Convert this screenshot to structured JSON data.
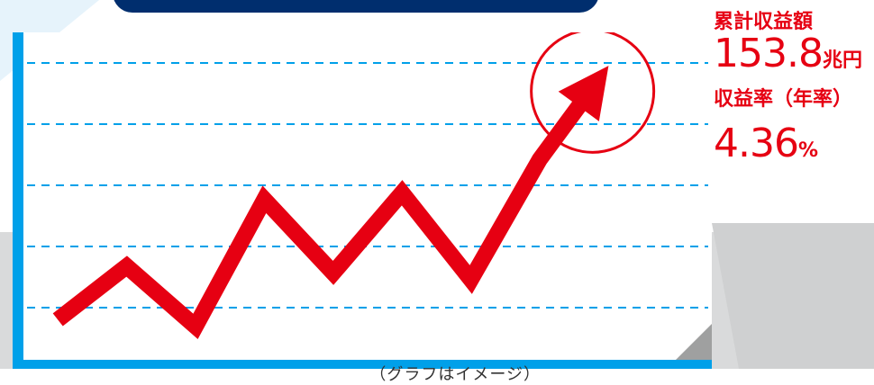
{
  "colors": {
    "accent": "#e60012",
    "frame_blue": "#00a0e9",
    "navy": "#002e6e",
    "gray_band": "#d9dadb",
    "dash": "#00a0e9"
  },
  "caption": "（グラフはイメージ）",
  "stats": {
    "cumulative_label": "累計収益額",
    "cumulative_value": "153.8",
    "cumulative_unit": "兆円",
    "rate_label": "収益率（年率）",
    "rate_value": "4.36",
    "rate_unit": "%"
  },
  "chart_data": {
    "type": "line",
    "title": "",
    "xlabel": "",
    "ylabel": "",
    "x": [
      1,
      2,
      3,
      4,
      5,
      6,
      7,
      8,
      9
    ],
    "series": [
      {
        "values": [
          0.3,
          1.1,
          0.2,
          2.1,
          1.0,
          2.2,
          0.9,
          2.7,
          4.1
        ]
      }
    ],
    "xlim": [
      0.5,
      10.5
    ],
    "ylim": [
      -0.3,
      4.6
    ],
    "grid": true,
    "gridlines": 5,
    "final_point_circled": true,
    "final_point_arrowhead": true
  }
}
